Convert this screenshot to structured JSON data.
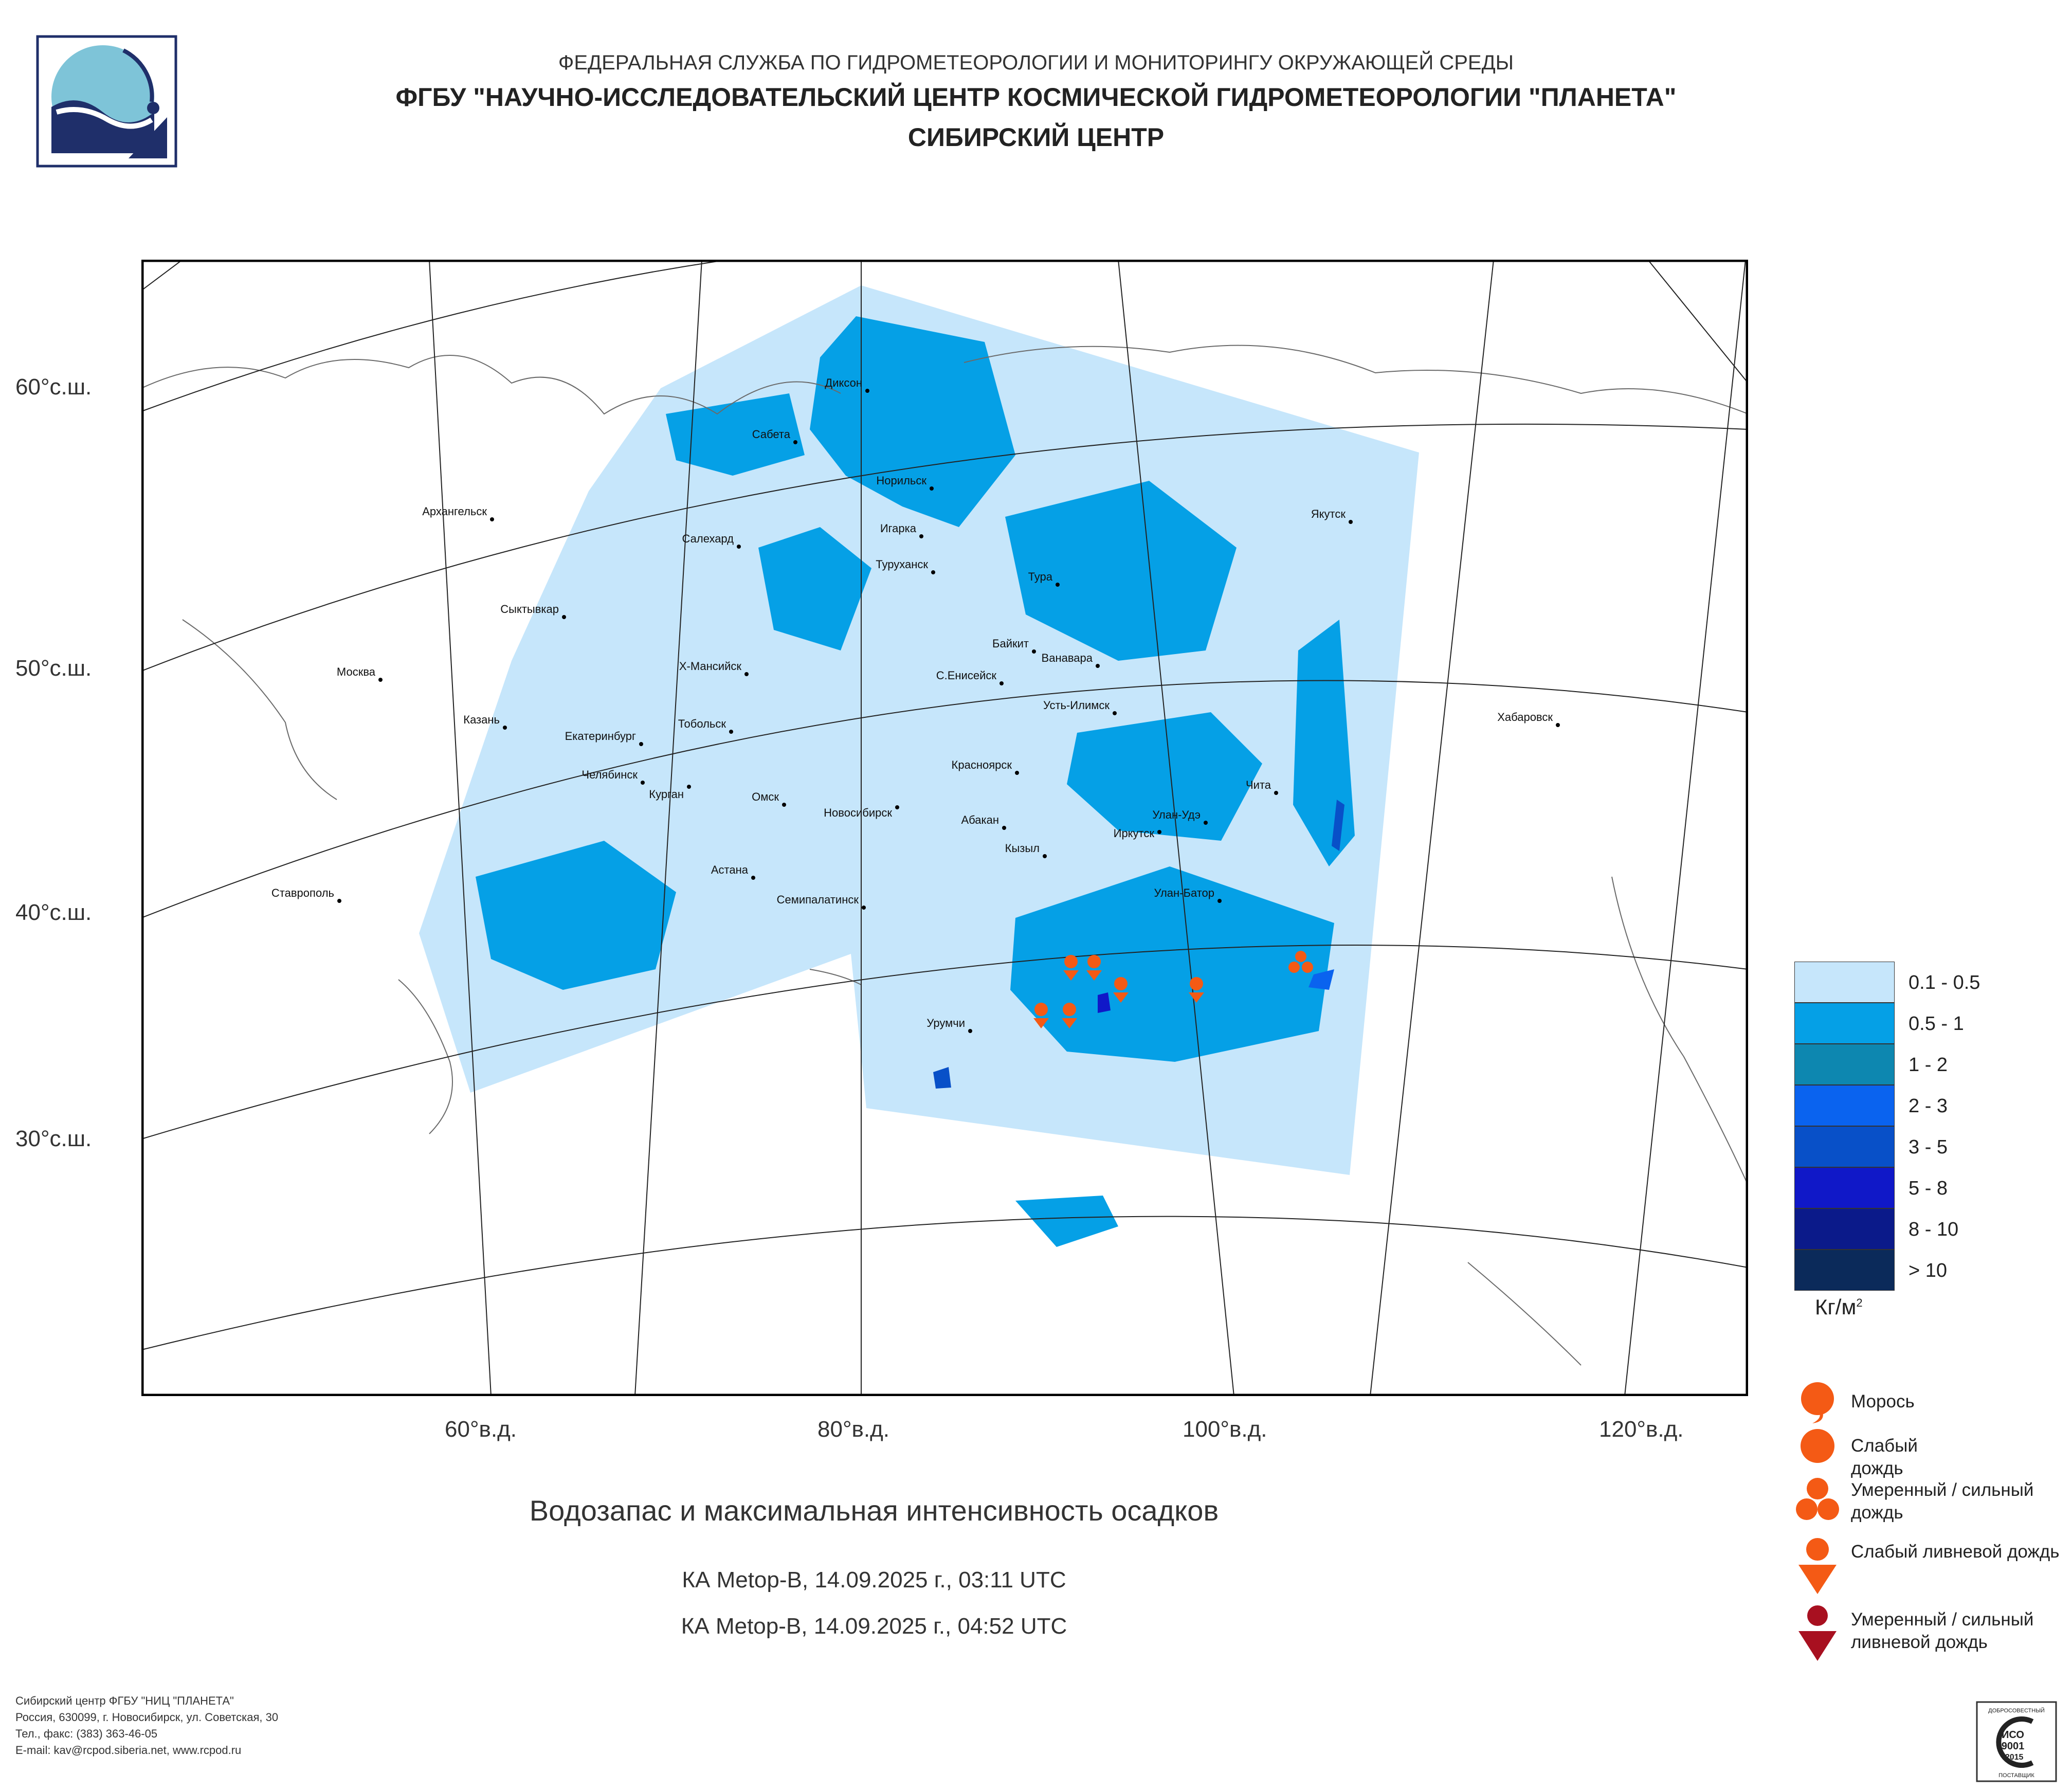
{
  "header": {
    "line1": "ФЕДЕРАЛЬНАЯ СЛУЖБА ПО ГИДРОМЕТЕОРОЛОГИИ И МОНИТОРИНГУ ОКРУЖАЮЩЕЙ СРЕДЫ",
    "line2": "ФГБУ \"НАУЧНО-ИССЛЕДОВАТЕЛЬСКИЙ ЦЕНТР КОСМИЧЕСКОЙ ГИДРОМЕТЕОРОЛОГИИ \"ПЛАНЕТА\"",
    "line3": "СИБИРСКИЙ ЦЕНТР"
  },
  "map": {
    "lat_labels": [
      "60°с.ш.",
      "50°с.ш.",
      "40°с.ш.",
      "30°с.ш."
    ],
    "lon_labels": [
      "60°в.д.",
      "80°в.д.",
      "100°в.д.",
      "120°в.д."
    ],
    "cities": [
      "Диксон",
      "Сабета",
      "Норильск",
      "Архангельск",
      "Салехард",
      "Игарка",
      "Туруханск",
      "Якутск",
      "Тура",
      "Сыктывкар",
      "Байкит",
      "Ванавара",
      "Москва",
      "Х-Мансийск",
      "С.Енисейск",
      "Усть-Илимск",
      "Казань",
      "Тобольск",
      "Хабаровск",
      "Екатеринбург",
      "Красноярск",
      "Челябинск",
      "Курган",
      "Чита",
      "Омск",
      "Новосибирск",
      "Абакан",
      "Улан-Удэ",
      "Иркутск",
      "Кызыл",
      "Астана",
      "Ставрополь",
      "Улан-Батор",
      "Семипалатинск",
      "Урумчи"
    ]
  },
  "title": "Водозапас и максимальная интенсивность осадков",
  "satellite_passes": [
    "КА Metop-B, 14.09.2025 г., 03:11 UTC",
    "КА Metop-B, 14.09.2025 г., 04:52 UTC"
  ],
  "legend": {
    "classes": [
      {
        "label": "0.1 - 0.5",
        "color": "#c6e6fb"
      },
      {
        "label": "0.5 - 1",
        "color": "#05a0e6"
      },
      {
        "label": "1 - 2",
        "color": "#0d87b0"
      },
      {
        "label": "2 - 3",
        "color": "#0a63ef"
      },
      {
        "label": "3 - 5",
        "color": "#0850c8"
      },
      {
        "label": "5 - 8",
        "color": "#1018c8"
      },
      {
        "label": "8 - 10",
        "color": "#0b1a8a"
      },
      {
        "label": "> 10",
        "color": "#0b2a5a"
      }
    ],
    "unit": "Кг/м",
    "unit_sup": "2"
  },
  "precip_types": [
    {
      "label": "Морось",
      "color": "#f45a15",
      "icon": "drizzle-icon"
    },
    {
      "label": "Слабый дождь",
      "color": "#f45a15",
      "icon": "light-rain-icon"
    },
    {
      "label": "Умеренный / сильный дождь",
      "color": "#f45a15",
      "icon": "moderate-rain-icon"
    },
    {
      "label": "Слабый ливневой дождь",
      "color": "#f45a15",
      "icon": "light-shower-icon"
    },
    {
      "label": "Умеренный / сильный ливневой дождь",
      "color": "#a81020",
      "icon": "heavy-shower-icon"
    }
  ],
  "footer": [
    "Сибирский центр ФГБУ \"НИЦ \"ПЛАНЕТА\"",
    "Россия, 630099, г. Новосибирск, ул. Советская, 30",
    "Тел., факс: (383) 363-46-05",
    "E-mail: kav@rcpod.siberia.net, www.rcpod.ru"
  ],
  "cert": {
    "top": "ДОБРОСОВЕСТНЫЙ",
    "mid1": "ИСО",
    "mid2": "9001",
    "mid3": "-2015",
    "bottom": "ПОСТАВЩИК"
  }
}
